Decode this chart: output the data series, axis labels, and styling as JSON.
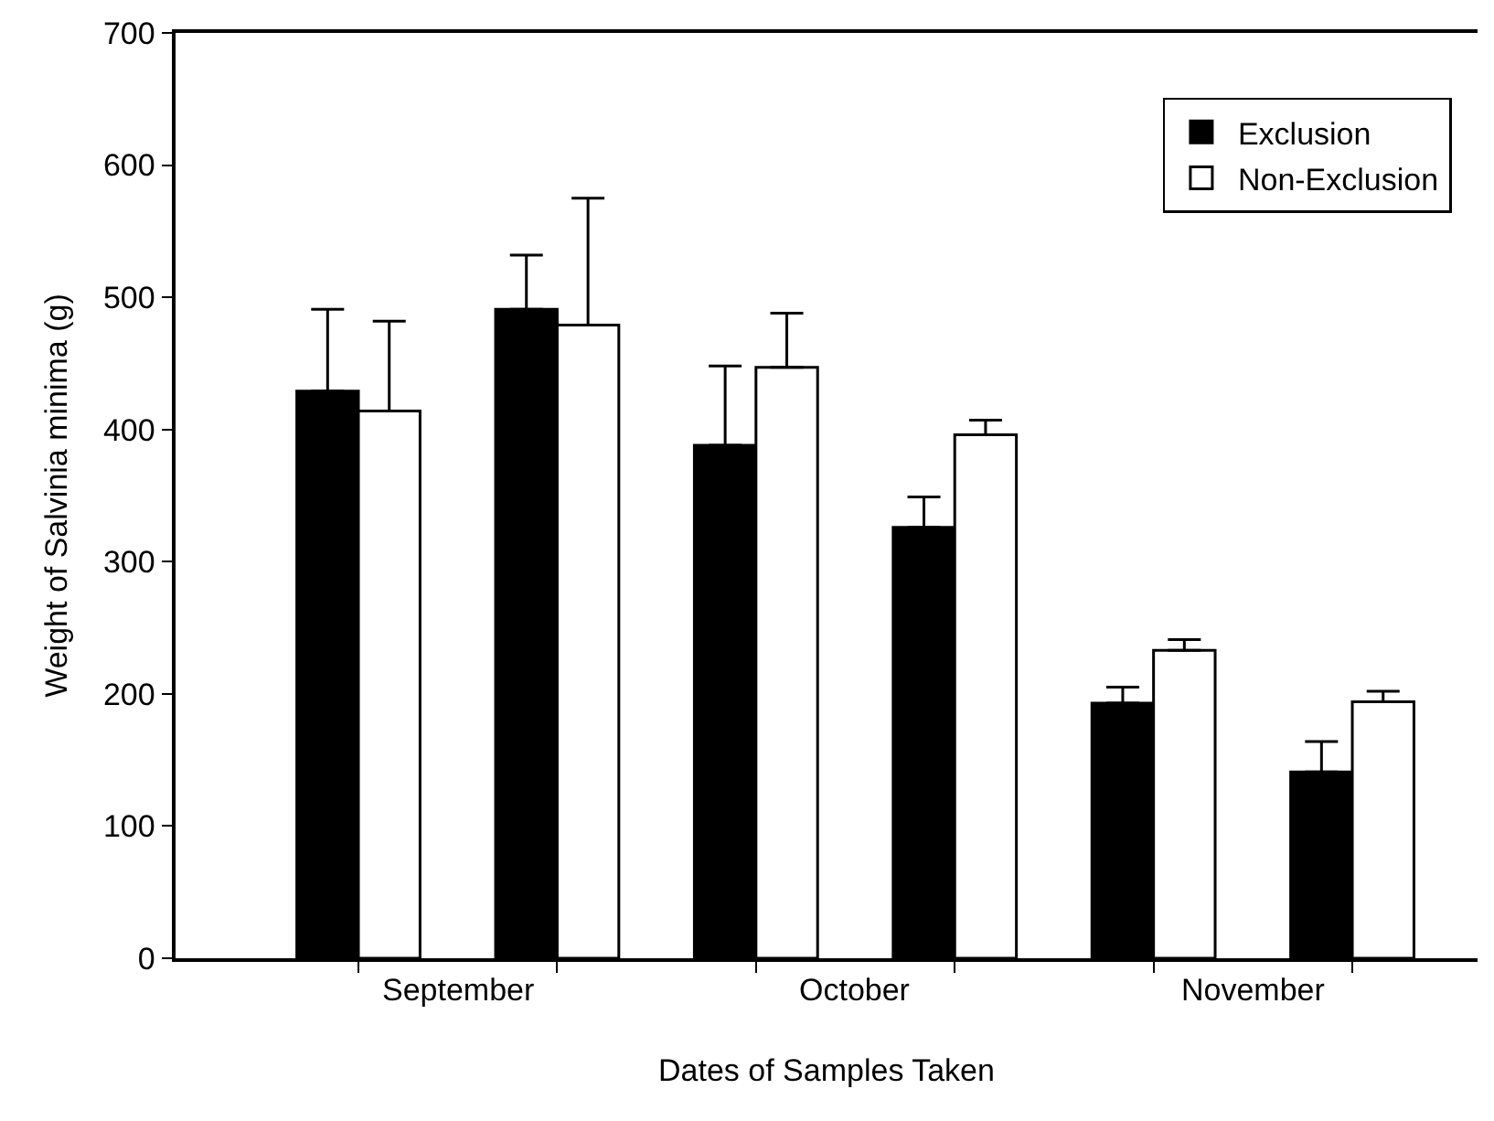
{
  "chart_data": {
    "type": "bar",
    "xlabel": "Dates of Samples Taken",
    "ylabel": "Weight of Salvinia minima (g)",
    "categories": [
      null,
      null,
      null,
      null,
      null,
      null
    ],
    "annotations": [
      "September",
      "October",
      "November"
    ],
    "ylim": [
      0,
      700
    ],
    "yticks": [
      0,
      100,
      200,
      300,
      400,
      500,
      600,
      700
    ],
    "series": [
      {
        "name": "Exclusion",
        "color": "#000000",
        "values": [
          429,
          491,
          388,
          326,
          193,
          141
        ],
        "errors": [
          [
            429,
            491
          ],
          [
            491,
            532
          ],
          [
            388,
            448
          ],
          [
            326,
            349
          ],
          [
            193,
            205
          ],
          [
            141,
            164
          ]
        ]
      },
      {
        "name": "Non-Exclusion",
        "color": "#ffffff",
        "values": [
          414,
          479,
          447,
          396,
          233,
          194
        ],
        "errors": [
          [
            414,
            482
          ],
          [
            479,
            575
          ],
          [
            447,
            488
          ],
          [
            396,
            407
          ],
          [
            233,
            241
          ],
          [
            194,
            202
          ]
        ]
      }
    ],
    "legend": "top right"
  }
}
